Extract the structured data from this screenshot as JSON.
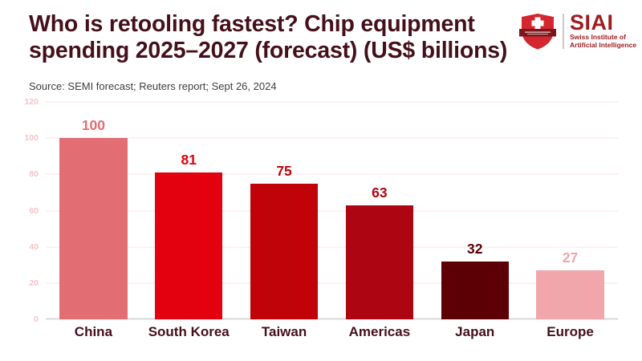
{
  "header": {
    "title": "Who is retooling fastest? Chip equipment spending 2025–2027 (forecast) (US$ billions)",
    "title_lines": {
      "line1": "Who is retooling fastest? Chip equipment",
      "line2": "spending 2025–2027 (forecast) (US$ billions)"
    },
    "source": "Source: SEMI forecast; Reuters report; Sept 26, 2024",
    "logo": {
      "wordmark": "SIAI",
      "subtitle_line1": "Swiss Institute of",
      "subtitle_line2": "Artificial Intelligence",
      "icon": "siai-shield-icon"
    }
  },
  "chart_data": {
    "type": "bar",
    "title": "Who is retooling fastest? Chip equipment spending 2025–2027 (forecast) (US$ billions)",
    "categories": [
      "China",
      "South Korea",
      "Taiwan",
      "Americas",
      "Japan",
      "Europe"
    ],
    "values": [
      100,
      81,
      75,
      63,
      32,
      27
    ],
    "bar_colors": [
      "#e26e73",
      "#e3000f",
      "#c00309",
      "#ad0511",
      "#5c0005",
      "#f0a6aa"
    ],
    "value_label_colors": [
      "#e26e73",
      "#e3000f",
      "#c00309",
      "#ad0511",
      "#5c0005",
      "#f0a6aa"
    ],
    "xlabel": "",
    "ylabel": "",
    "ylim": [
      0,
      120
    ],
    "yticks": [
      0,
      20,
      40,
      60,
      80,
      100,
      120
    ],
    "grid": true,
    "legend": false
  },
  "colors": {
    "title_text": "#45101a",
    "source_text": "#3d3d3d",
    "axis_tick_text": "#f6c3c8",
    "gridline": "#fbe3e4",
    "baseline": "#d9d9d9",
    "logo_red": "#9e1c20",
    "shield_red": "#d3262e",
    "ribbon_dark_red": "#7c151a",
    "background": "#ffffff"
  }
}
